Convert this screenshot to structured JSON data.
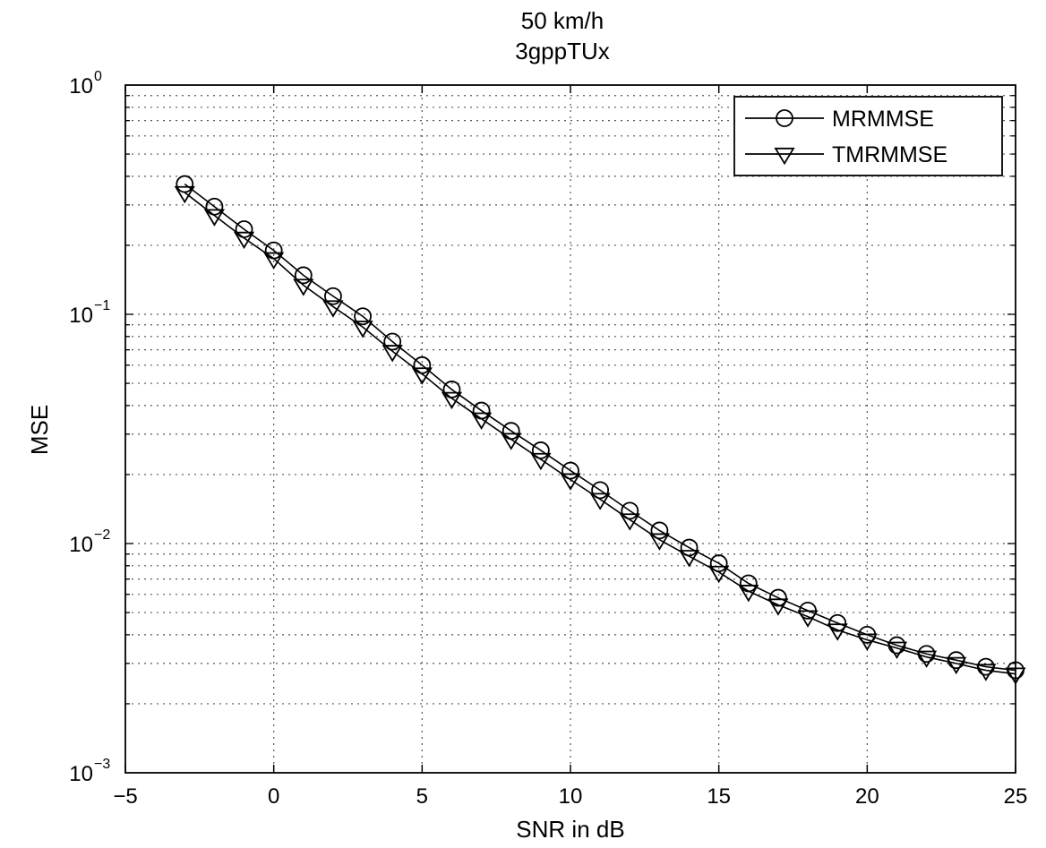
{
  "chart_data": {
    "type": "line",
    "title": [
      "50 km/h",
      "3gppTUx"
    ],
    "xlabel": "SNR in dB",
    "ylabel": "MSE",
    "xlim": [
      -5,
      25
    ],
    "ylim": [
      0.001,
      1
    ],
    "yscale": "log",
    "grid": true,
    "legend_position": "top-right",
    "x_ticks": [
      {
        "value": -5,
        "label": "−5"
      },
      {
        "value": 0,
        "label": "0"
      },
      {
        "value": 5,
        "label": "5"
      },
      {
        "value": 10,
        "label": "10"
      },
      {
        "value": 15,
        "label": "15"
      },
      {
        "value": 20,
        "label": "20"
      },
      {
        "value": 25,
        "label": "25"
      }
    ],
    "y_ticks": [
      {
        "value": 1,
        "base": "10",
        "exp": "0"
      },
      {
        "value": 0.1,
        "base": "10",
        "exp": "−1"
      },
      {
        "value": 0.01,
        "base": "10",
        "exp": "−2"
      },
      {
        "value": 0.001,
        "base": "10",
        "exp": "−3"
      }
    ],
    "x": [
      -3,
      -2,
      -1,
      0,
      1,
      2,
      3,
      4,
      5,
      6,
      7,
      8,
      9,
      10,
      11,
      12,
      13,
      14,
      15,
      16,
      17,
      18,
      19,
      20,
      21,
      22,
      23,
      24,
      25
    ],
    "series": [
      {
        "name": "MRMMSE",
        "marker": "circle",
        "color": "#000000",
        "values": [
          0.37,
          0.295,
          0.235,
          0.19,
          0.148,
          0.12,
          0.098,
          0.076,
          0.06,
          0.047,
          0.038,
          0.031,
          0.0255,
          0.0208,
          0.0171,
          0.0139,
          0.0114,
          0.0096,
          0.0082,
          0.0067,
          0.0058,
          0.0051,
          0.0045,
          0.004,
          0.0036,
          0.0033,
          0.0031,
          0.0029,
          0.0028
        ]
      },
      {
        "name": "TMRMMSE",
        "marker": "triangle-down",
        "color": "#000000",
        "values": [
          0.34,
          0.27,
          0.215,
          0.175,
          0.134,
          0.108,
          0.088,
          0.069,
          0.055,
          0.043,
          0.035,
          0.0285,
          0.0233,
          0.019,
          0.0156,
          0.0127,
          0.0104,
          0.0088,
          0.0075,
          0.0062,
          0.0054,
          0.0048,
          0.0042,
          0.0038,
          0.0035,
          0.0032,
          0.003,
          0.0028,
          0.0027
        ]
      }
    ]
  }
}
